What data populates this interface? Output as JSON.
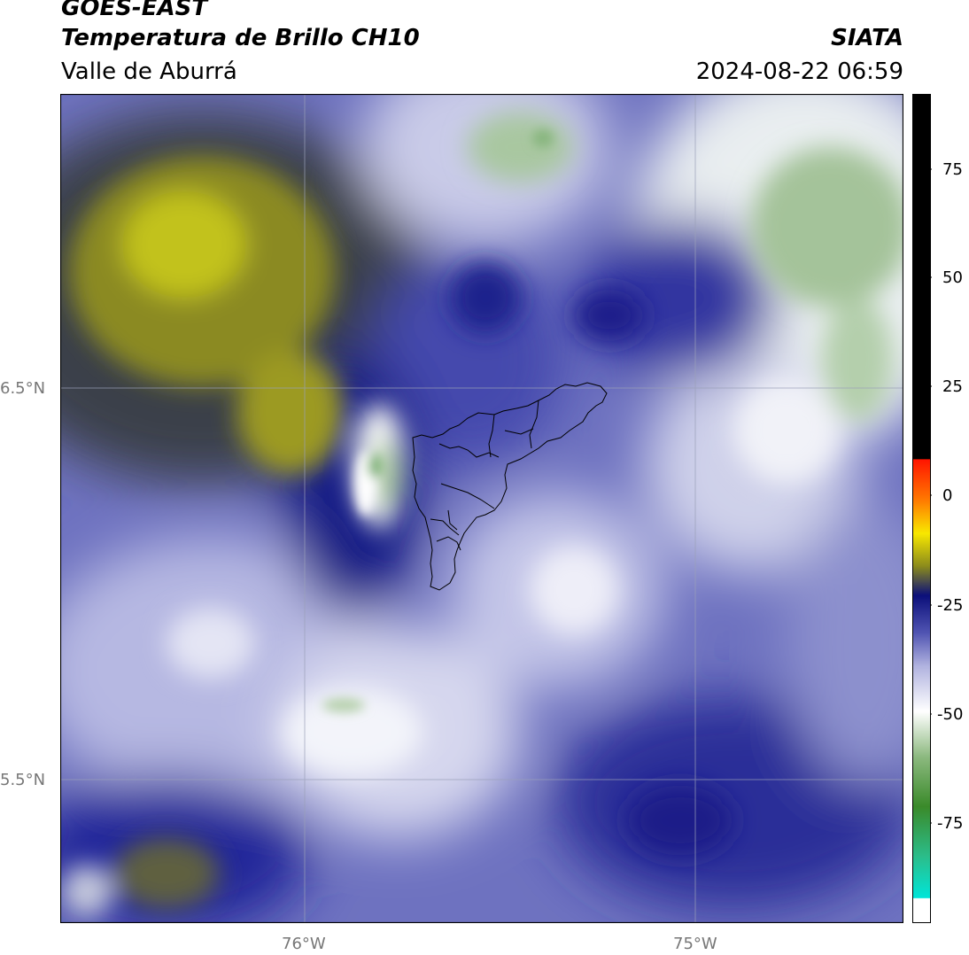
{
  "header": {
    "satellite": "GOES-EAST",
    "product": "Temperatura de Brillo CH10",
    "region": "Valle de Aburrá",
    "agency": "SIATA",
    "timestamp": "2024-08-22 06:59"
  },
  "map": {
    "lat_labels": [
      "6.5°N",
      "5.5°N"
    ],
    "lon_labels": [
      "76°W",
      "75°W"
    ]
  },
  "colorbar": {
    "ticks": [
      "75",
      "50",
      "25",
      "0",
      "-25",
      "-50",
      "-75"
    ],
    "colors": {
      "black": "#000000",
      "red": "#ff1a00",
      "orange": "#ff8c00",
      "yellow": "#f5f000",
      "olive": "#8a8a1a",
      "navy": "#0b0f7a",
      "periwinkle": "#8f93cf",
      "white": "#ffffff",
      "green": "#3a8a2a",
      "cyan": "#00e5d8"
    }
  }
}
